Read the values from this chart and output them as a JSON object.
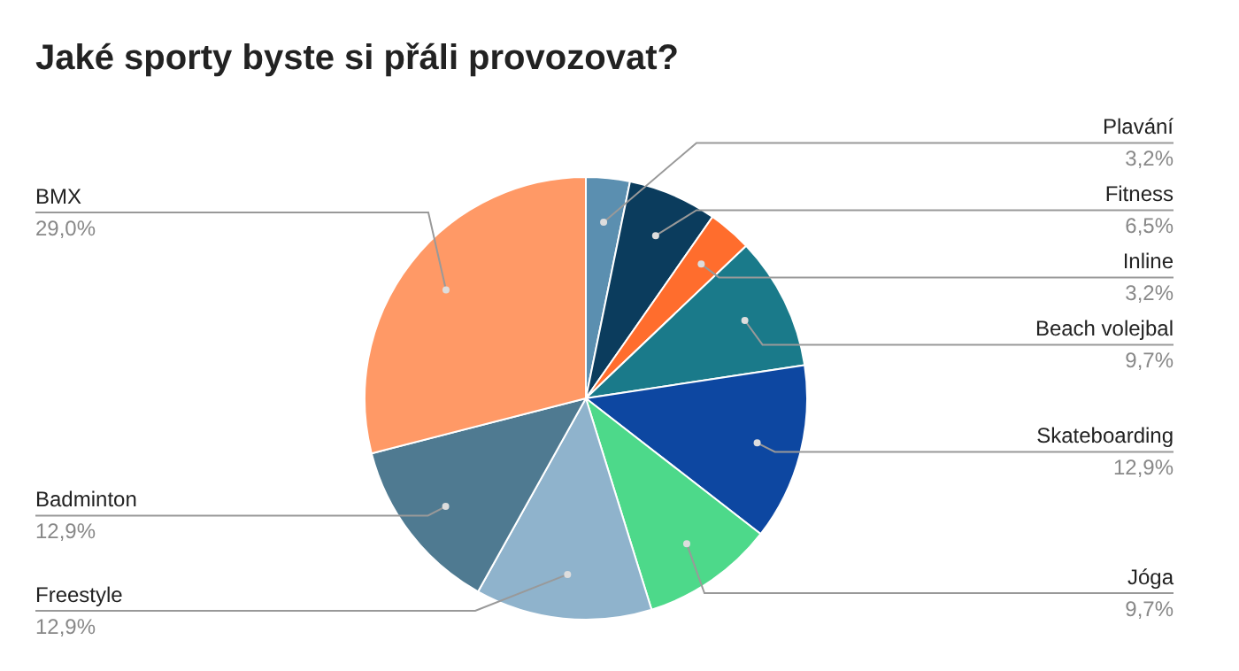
{
  "chart_data": {
    "type": "pie",
    "title": "Jaké sporty byste si přáli provozovat?",
    "categories": [
      "Plavání",
      "Fitness",
      "Inline",
      "Beach volejbal",
      "Skateboarding",
      "Jóga",
      "Freestyle",
      "Badminton",
      "BMX"
    ],
    "values": [
      3.2,
      6.5,
      3.2,
      9.7,
      12.9,
      9.7,
      12.9,
      12.9,
      29.0
    ],
    "value_labels": [
      "3,2%",
      "6,5%",
      "3,2%",
      "9,7%",
      "12,9%",
      "9,7%",
      "12,9%",
      "12,9%",
      "29,0%"
    ],
    "colors": [
      "#5b8fb0",
      "#0b3c5d",
      "#ff6d2d",
      "#1a7a8a",
      "#0d47a1",
      "#4dd98a",
      "#8fb3cc",
      "#4f7a91",
      "#ff9966"
    ],
    "legend": false
  }
}
